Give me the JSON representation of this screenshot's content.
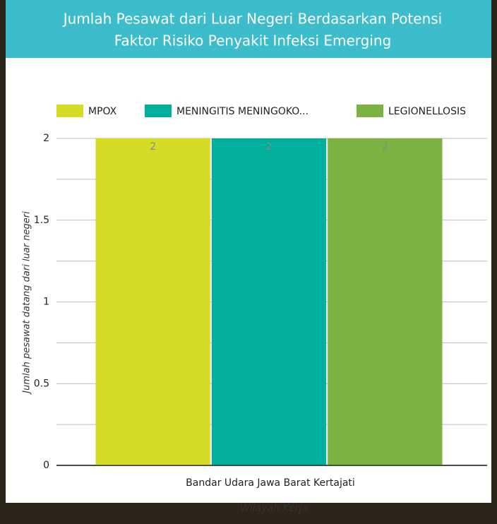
{
  "chart_data": {
    "type": "bar",
    "title": [
      "Jumlah Pesawat dari Luar Negeri Berdasarkan Potensi",
      "Faktor Risiko Penyakit Infeksi Emerging"
    ],
    "x_label": "Wilayah Kerja",
    "y_label": "Jumlah pesawat datang dari luar negeri",
    "categories": [
      "Bandar Udara Jawa Barat Kertajati"
    ],
    "series": [
      {
        "name": "MPOX",
        "color": "#d4dc26",
        "values": [
          2
        ]
      },
      {
        "name": "MENINGITIS MENINGOKO...",
        "color": "#00b09d",
        "values": [
          2
        ]
      },
      {
        "name": "LEGIONELLOSIS",
        "color": "#7bb343",
        "values": [
          2
        ]
      }
    ],
    "ylim": [
      0,
      2
    ],
    "yticks": [
      0,
      0.5,
      1,
      1.5,
      2
    ],
    "yminorticks": [
      0.25,
      0.75,
      1.25,
      1.75
    ],
    "grid": true,
    "legend": "top"
  }
}
